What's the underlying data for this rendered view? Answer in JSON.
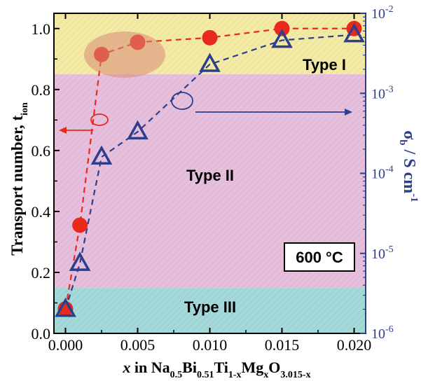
{
  "chart_data": {
    "type": "scatter",
    "x": [
      0.0,
      0.001,
      0.0025,
      0.005,
      0.01,
      0.015,
      0.02
    ],
    "series": [
      {
        "axis": "left",
        "values": [
          0.08,
          0.355,
          0.915,
          0.955,
          0.97,
          1.0,
          1.0
        ],
        "marker": "circle",
        "color": "#e8291c",
        "line": "dashed"
      },
      {
        "axis": "right",
        "x": [
          0.0,
          0.001,
          0.0025,
          0.005,
          0.01,
          0.015,
          0.02
        ],
        "values": [
          2e-06,
          7.5e-06,
          0.00016,
          0.00033,
          0.0023,
          0.0046,
          0.0054
        ],
        "marker": "triangle",
        "color": "#2c3e8c",
        "line": "dashed"
      }
    ],
    "xlim": [
      -0.0008,
      0.0208
    ],
    "ylim": [
      0.0,
      1.05
    ],
    "y2lim": [
      1e-06,
      0.01
    ],
    "y2scale": "log",
    "xticks": [
      "0.000",
      "0.005",
      "0.010",
      "0.015",
      "0.020"
    ],
    "xtick_values": [
      0.0,
      0.005,
      0.01,
      0.015,
      0.02
    ],
    "yticks": [
      "0.0",
      "0.2",
      "0.4",
      "0.6",
      "0.8",
      "1.0"
    ],
    "ytick_values": [
      0.0,
      0.2,
      0.4,
      0.6,
      0.8,
      1.0
    ],
    "y2ticks": [
      {
        "base": "10",
        "exp": "-6",
        "value": 1e-06
      },
      {
        "base": "10",
        "exp": "-5",
        "value": 1e-05
      },
      {
        "base": "10",
        "exp": "-4",
        "value": 0.0001
      },
      {
        "base": "10",
        "exp": "-3",
        "value": 0.001
      },
      {
        "base": "10",
        "exp": "-2",
        "value": 0.01
      }
    ],
    "ylabel": {
      "main": "Transport number, t",
      "sub": "ion"
    },
    "y2label": {
      "sym": "σ",
      "sub": "b",
      "mid": " / S cm",
      "sup": "-1"
    },
    "xlabel": {
      "italic_x": "x",
      "parts": [
        {
          "t": " in Na",
          "sub": "0.5"
        },
        {
          "t": "Bi",
          "sub": "0.51"
        },
        {
          "t": "Ti",
          "sub": "1-x"
        },
        {
          "t": "Mg",
          "sub": "x"
        },
        {
          "t": "O",
          "sub": "3.015-x"
        }
      ]
    },
    "regions": [
      {
        "label": "Type I",
        "ymin": 0.85,
        "ymax": 1.05,
        "color": "#f3eaa6"
      },
      {
        "label": "Type II",
        "ymin": 0.15,
        "ymax": 0.85,
        "color": "#e6bfdc"
      },
      {
        "label": "Type III",
        "ymin": 0.0,
        "ymax": 0.15,
        "color": "#a5d9d9"
      }
    ],
    "annotation_box": "600 °C",
    "grid": false
  }
}
